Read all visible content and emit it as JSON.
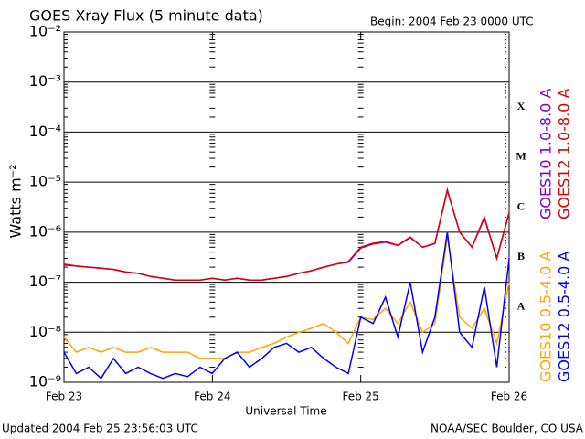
{
  "chart_data": {
    "type": "line",
    "title": "GOES Xray Flux (5 minute data)",
    "subtitle": "Begin:  2004 Feb 23 0000 UTC",
    "xlabel": "Universal Time",
    "ylabel": "Watts m⁻²",
    "footer_left": "Updated 2004 Feb 25 23:56:03 UTC",
    "footer_right": "NOAA/SEC Boulder, CO USA",
    "log_y": true,
    "grid": true,
    "xlim": [
      0,
      72
    ],
    "xticks": [
      {
        "value": 0,
        "label": "Feb 23"
      },
      {
        "value": 24,
        "label": "Feb 24"
      },
      {
        "value": 48,
        "label": "Feb 25"
      },
      {
        "value": 72,
        "label": "Feb 26"
      }
    ],
    "ylim": [
      1e-09,
      0.01
    ],
    "yticks": [
      {
        "value": 1e-09,
        "label": "10⁻⁹"
      },
      {
        "value": 1e-08,
        "label": "10⁻⁸"
      },
      {
        "value": 1e-07,
        "label": "10⁻⁷"
      },
      {
        "value": 1e-06,
        "label": "10⁻⁶"
      },
      {
        "value": 1e-05,
        "label": "10⁻⁵"
      },
      {
        "value": 0.0001,
        "label": "10⁻⁴"
      },
      {
        "value": 0.001,
        "label": "10⁻³"
      },
      {
        "value": 0.01,
        "label": "10⁻²"
      }
    ],
    "flare_classes": {
      "labels": [
        "A",
        "B",
        "C",
        "M",
        "X"
      ],
      "values": [
        1e-08,
        1e-07,
        1e-06,
        1e-05,
        0.0001
      ]
    },
    "x": [
      0,
      2,
      4,
      6,
      8,
      10,
      12,
      14,
      16,
      18,
      20,
      22,
      24,
      26,
      28,
      30,
      32,
      34,
      36,
      38,
      40,
      42,
      44,
      46,
      48,
      50,
      52,
      54,
      56,
      58,
      60,
      62,
      64,
      66,
      68,
      70,
      72
    ],
    "series": [
      {
        "name": "GOES10 1.0-8.0 A",
        "color": "#8000d0",
        "values": [
          2.2e-07,
          2.1e-07,
          2e-07,
          1.9e-07,
          1.8e-07,
          1.6e-07,
          1.5e-07,
          1.3e-07,
          1.2e-07,
          1.1e-07,
          1.1e-07,
          1.1e-07,
          1.2e-07,
          1.1e-07,
          1.2e-07,
          1.1e-07,
          1.1e-07,
          1.2e-07,
          1.3e-07,
          1.5e-07,
          1.7e-07,
          2e-07,
          2.3e-07,
          2.5e-07,
          4.8e-07,
          5.8e-07,
          6.3e-07,
          5.4e-07,
          7.8e-07,
          5e-07,
          5.9e-07,
          6.8e-06,
          1e-06,
          5e-07,
          1.9e-06,
          3e-07,
          2.4e-06
        ]
      },
      {
        "name": "GOES12 1.0-8.0 A",
        "color": "#e00000",
        "values": [
          2.3e-07,
          2.1e-07,
          2e-07,
          1.9e-07,
          1.8e-07,
          1.6e-07,
          1.5e-07,
          1.3e-07,
          1.2e-07,
          1.1e-07,
          1.1e-07,
          1.1e-07,
          1.2e-07,
          1.1e-07,
          1.2e-07,
          1.1e-07,
          1.1e-07,
          1.2e-07,
          1.3e-07,
          1.5e-07,
          1.7e-07,
          2e-07,
          2.3e-07,
          2.6e-07,
          5e-07,
          6e-07,
          6.5e-07,
          5.5e-07,
          8e-07,
          5e-07,
          6e-07,
          7e-06,
          1e-06,
          5e-07,
          2e-06,
          3e-07,
          2.5e-06
        ]
      },
      {
        "name": "GOES10 0.5-4.0 A",
        "color": "#ffa500",
        "values": [
          8e-09,
          4e-09,
          5e-09,
          4e-09,
          5e-09,
          4e-09,
          4e-09,
          5e-09,
          4e-09,
          4e-09,
          4e-09,
          3e-09,
          3e-09,
          3e-09,
          4e-09,
          4e-09,
          5e-09,
          6e-09,
          8e-09,
          1e-08,
          1.2e-08,
          1.5e-08,
          1e-08,
          6e-09,
          2e-08,
          1.8e-08,
          3e-08,
          1.5e-08,
          4e-08,
          1e-08,
          1.5e-08,
          8e-07,
          2e-08,
          1.2e-08,
          3e-08,
          6e-09,
          1e-07
        ]
      },
      {
        "name": "GOES12 0.5-4.0 A",
        "color": "#0000ff",
        "values": [
          4e-09,
          1.5e-09,
          2e-09,
          1.2e-09,
          3e-09,
          1.5e-09,
          2e-09,
          1.5e-09,
          1.2e-09,
          1.5e-09,
          1.3e-09,
          2e-09,
          1.5e-09,
          3e-09,
          4e-09,
          2e-09,
          3e-09,
          5e-09,
          6e-09,
          4e-09,
          5e-09,
          3e-09,
          2e-09,
          1.5e-09,
          2e-08,
          1.5e-08,
          5e-08,
          8e-09,
          1e-07,
          4e-09,
          2e-08,
          1e-06,
          1e-08,
          5e-09,
          8e-08,
          2e-09,
          3e-07
        ]
      }
    ]
  }
}
